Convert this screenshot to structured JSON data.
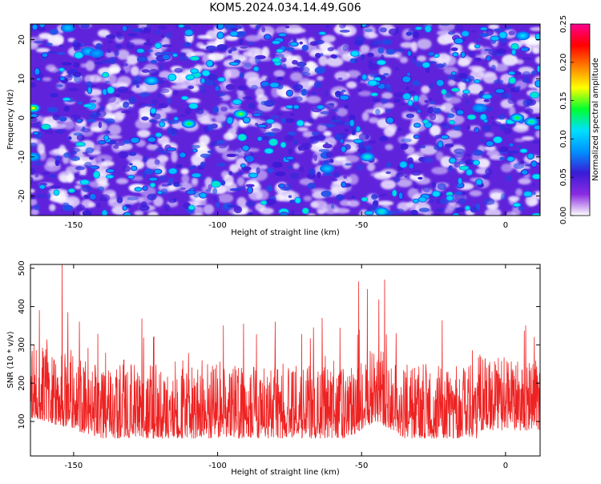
{
  "title": "KOM5.2024.034.14.49.G06",
  "colors": {
    "snr_line": "#ee2222",
    "spectrum_ramp": [
      "#ffffff",
      "#8a2be2",
      "#3a1bd6",
      "#0090ff",
      "#00e0ff",
      "#00ff30",
      "#ffff00",
      "#ff8000",
      "#ff0000",
      "#ff0090"
    ]
  },
  "chart_data": [
    {
      "type": "heatmap",
      "xlabel": "Height of straight line (km)",
      "ylabel": "Frequency (Hz)",
      "xlim": [
        -165,
        12
      ],
      "ylim": [
        -25,
        24
      ],
      "xticks": [
        -150,
        -100,
        -50,
        0
      ],
      "yticks": [
        -20,
        -10,
        0,
        10,
        20
      ],
      "colorbar": {
        "label": "Normalized spectral amplitude",
        "range": [
          0,
          0.25
        ],
        "ticks": [
          "0.00",
          "0.05",
          "0.10",
          "0.15",
          "0.20",
          "0.25"
        ]
      },
      "hotspots": [
        {
          "x": -164,
          "y": 2.5,
          "value": 0.17
        },
        {
          "x": -92,
          "y": 1.0,
          "value": 0.15
        },
        {
          "x": -110,
          "y": -1.5,
          "value": 0.14
        },
        {
          "x": 4,
          "y": 0.0,
          "value": 0.14
        },
        {
          "x": 9,
          "y": -1.0,
          "value": 0.13
        },
        {
          "x": -48,
          "y": -10.0,
          "value": 0.12
        },
        {
          "x": -43,
          "y": -24.0,
          "value": 0.12
        },
        {
          "x": -123,
          "y": 9.5,
          "value": 0.11
        },
        {
          "x": 6,
          "y": 21.0,
          "value": 0.11
        },
        {
          "x": -152,
          "y": 23.0,
          "value": 0.1
        },
        {
          "x": -164,
          "y": -10.0,
          "value": 0.1
        },
        {
          "x": -145,
          "y": 17.0,
          "value": 0.1
        },
        {
          "x": -62,
          "y": -13.0,
          "value": 0.1
        },
        {
          "x": -142,
          "y": 16.5,
          "value": 0.09
        },
        {
          "x": -9,
          "y": 2.5,
          "value": 0.09
        }
      ]
    },
    {
      "type": "line",
      "xlabel": "Height of straight line (km)",
      "ylabel": "SNR (10 * v/v)",
      "xlim": [
        -165,
        12
      ],
      "ylim": [
        10,
        510
      ],
      "xticks": [
        -150,
        -100,
        -50,
        0
      ],
      "yticks": [
        100,
        200,
        300,
        400,
        500
      ],
      "series": [
        {
          "points_per_km": 10,
          "baseline": 125,
          "peaks": [
            {
              "x": -154,
              "y": 510
            },
            {
              "x": -152,
              "y": 385
            },
            {
              "x": -148,
              "y": 360
            },
            {
              "x": -98,
              "y": 350
            },
            {
              "x": -91,
              "y": 355
            },
            {
              "x": -80,
              "y": 360
            },
            {
              "x": -51,
              "y": 465
            },
            {
              "x": -48,
              "y": 445
            },
            {
              "x": -44,
              "y": 418
            },
            {
              "x": -42,
              "y": 470
            },
            {
              "x": -38,
              "y": 330
            },
            {
              "x": 7,
              "y": 350
            },
            {
              "x": 10,
              "y": 320
            }
          ]
        }
      ]
    }
  ]
}
